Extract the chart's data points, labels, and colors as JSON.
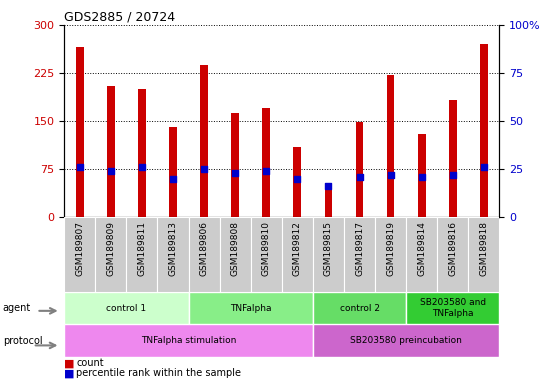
{
  "title": "GDS2885 / 20724",
  "samples": [
    "GSM189807",
    "GSM189809",
    "GSM189811",
    "GSM189813",
    "GSM189806",
    "GSM189808",
    "GSM189810",
    "GSM189812",
    "GSM189815",
    "GSM189817",
    "GSM189819",
    "GSM189814",
    "GSM189816",
    "GSM189818"
  ],
  "counts": [
    265,
    205,
    200,
    140,
    238,
    163,
    170,
    110,
    50,
    148,
    222,
    130,
    183,
    270
  ],
  "percentile_ranks": [
    26,
    24,
    26,
    20,
    25,
    23,
    24,
    20,
    16,
    21,
    22,
    21,
    22,
    26
  ],
  "ylim_left": [
    0,
    300
  ],
  "ylim_right": [
    0,
    100
  ],
  "yticks_left": [
    0,
    75,
    150,
    225,
    300
  ],
  "yticks_right": [
    0,
    25,
    50,
    75,
    100
  ],
  "bar_color": "#cc0000",
  "percentile_color": "#0000cc",
  "agent_groups": [
    {
      "label": "control 1",
      "start": 0,
      "end": 4,
      "color": "#ccffcc"
    },
    {
      "label": "TNFalpha",
      "start": 4,
      "end": 8,
      "color": "#88ee88"
    },
    {
      "label": "control 2",
      "start": 8,
      "end": 11,
      "color": "#66dd66"
    },
    {
      "label": "SB203580 and\nTNFalpha",
      "start": 11,
      "end": 14,
      "color": "#33cc33"
    }
  ],
  "protocol_groups": [
    {
      "label": "TNFalpha stimulation",
      "start": 0,
      "end": 8,
      "color": "#ee88ee"
    },
    {
      "label": "SB203580 preincubation",
      "start": 8,
      "end": 14,
      "color": "#cc66cc"
    }
  ],
  "background_color": "#ffffff",
  "tick_label_bg": "#cccccc"
}
